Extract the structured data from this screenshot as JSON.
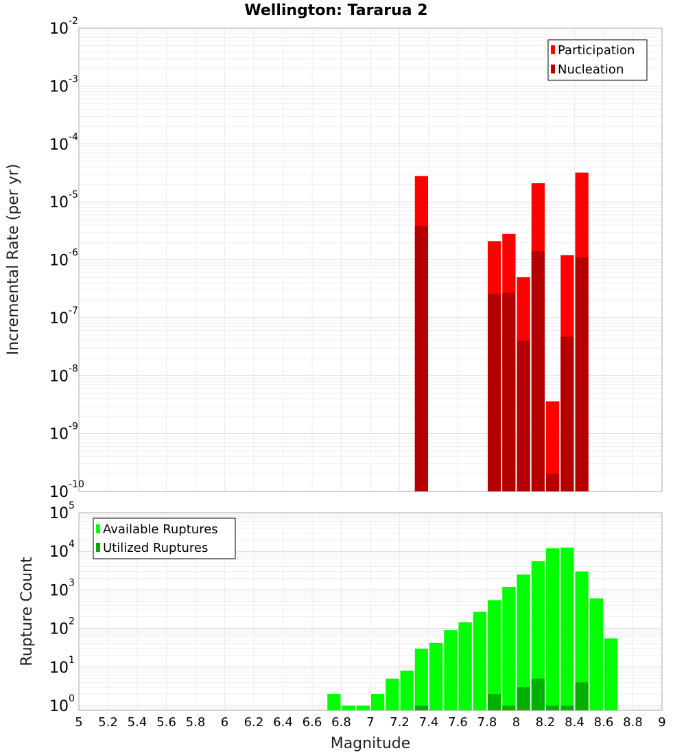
{
  "chart_data": [
    {
      "type": "bar",
      "title": "Wellington: Tararua 2",
      "xlabel": "",
      "ylabel": "Incremental Rate (per yr)",
      "xlim": [
        5,
        9
      ],
      "ylim": [
        1e-10,
        0.01
      ],
      "yscale": "log",
      "bin_width": 0.1,
      "grid": true,
      "legend_position": "top-right",
      "colors": {
        "Participation": "#ff0000",
        "Nucleation": "#b30000"
      },
      "series": [
        {
          "name": "Participation",
          "x": [
            7.35,
            7.85,
            7.95,
            8.05,
            8.15,
            8.25,
            8.35,
            8.45
          ],
          "values": [
            2.8e-05,
            2.1e-06,
            2.8e-06,
            5e-07,
            2.1e-05,
            3.6e-09,
            1.2e-06,
            3.2e-05
          ]
        },
        {
          "name": "Nucleation",
          "x": [
            7.35,
            7.85,
            7.95,
            8.05,
            8.15,
            8.25,
            8.35,
            8.45
          ],
          "values": [
            3.8e-06,
            2.6e-07,
            2.7e-07,
            4e-08,
            1.4e-06,
            2e-10,
            4.7e-08,
            1.1e-06
          ]
        }
      ]
    },
    {
      "type": "bar",
      "title": "",
      "xlabel": "Magnitude",
      "ylabel": "Rupture Count",
      "xlim": [
        5,
        9
      ],
      "ylim": [
        0.75,
        100000.0
      ],
      "yscale": "log",
      "bin_width": 0.1,
      "grid": true,
      "legend_position": "top-left",
      "colors": {
        "Available Ruptures": "#00ff00",
        "Utilized Ruptures": "#00b000"
      },
      "xticks": [
        "5",
        "5.2",
        "5.4",
        "5.6",
        "5.8",
        "6",
        "6.2",
        "6.4",
        "6.6",
        "6.8",
        "7",
        "7.2",
        "7.4",
        "7.6",
        "7.8",
        "8",
        "8.2",
        "8.4",
        "8.6",
        "8.8",
        "9"
      ],
      "series": [
        {
          "name": "Available Ruptures",
          "x": [
            6.75,
            6.85,
            6.95,
            7.05,
            7.15,
            7.25,
            7.35,
            7.45,
            7.55,
            7.65,
            7.75,
            7.85,
            7.95,
            8.05,
            8.15,
            8.25,
            8.35,
            8.45,
            8.55,
            8.65
          ],
          "values": [
            2,
            1,
            1,
            2,
            5,
            8,
            30,
            42,
            90,
            145,
            270,
            540,
            1200,
            2500,
            5600,
            12000,
            12500,
            3000,
            600,
            55
          ]
        },
        {
          "name": "Utilized Ruptures",
          "x": [
            7.35,
            7.85,
            7.95,
            8.05,
            8.15,
            8.25,
            8.35,
            8.45
          ],
          "values": [
            1,
            2,
            1,
            3,
            5,
            1,
            1,
            4
          ]
        }
      ]
    }
  ]
}
